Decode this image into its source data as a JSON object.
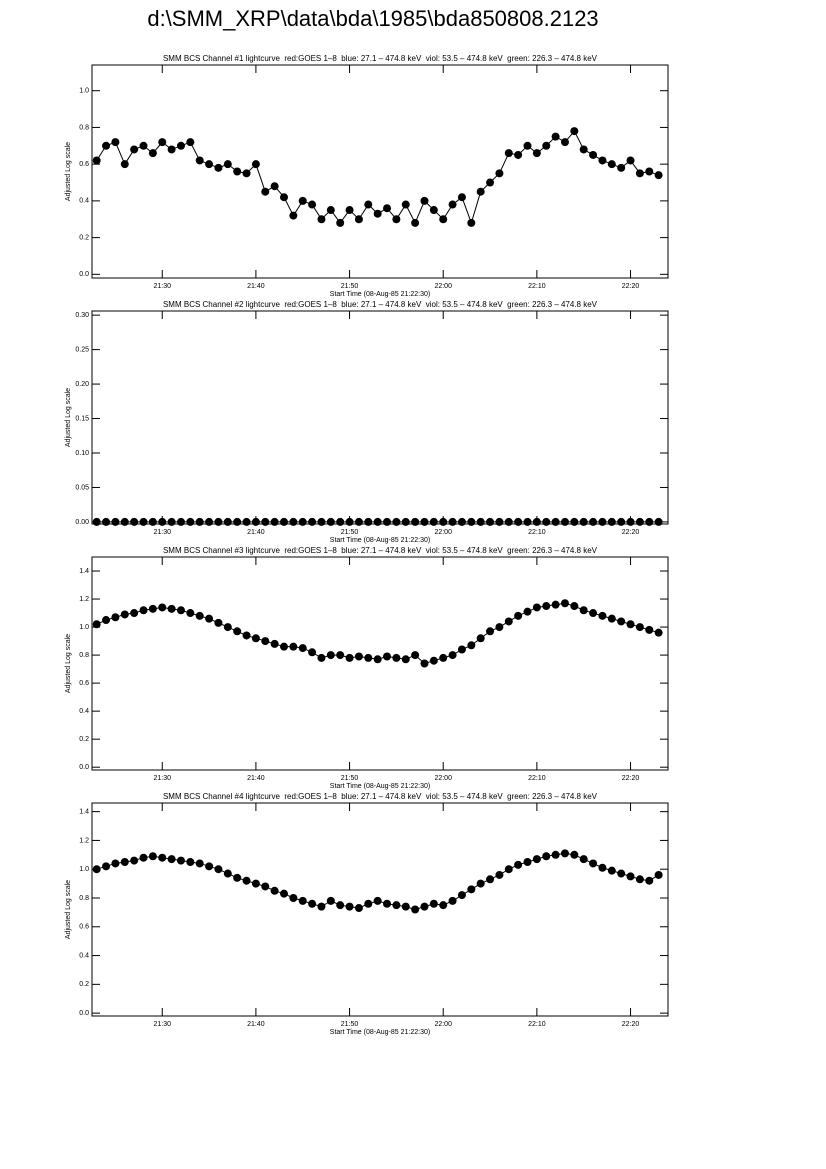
{
  "title": "d:\\SMM_XRP\\data\\bda\\1985\\bda850808.2123",
  "chart_data": [
    {
      "type": "line",
      "markers": true,
      "color": "#000000",
      "title": "SMM BCS Channel #1 lightcurve  red:GOES 1–8  blue: 27.1 – 474.8 keV  viol: 53.5 – 474.8 keV  green: 226.3 – 474.8 keV",
      "xlabel": "Start Time (08-Aug-85 21:22:30)",
      "ylabel": "Adjusted Log scale",
      "x": [
        "21:23",
        "21:24",
        "21:25",
        "21:26",
        "21:27",
        "21:28",
        "21:29",
        "21:30",
        "21:31",
        "21:32",
        "21:33",
        "21:34",
        "21:35",
        "21:36",
        "21:37",
        "21:38",
        "21:39",
        "21:40",
        "21:41",
        "21:42",
        "21:43",
        "21:44",
        "21:45",
        "21:46",
        "21:47",
        "21:48",
        "21:49",
        "21:50",
        "21:51",
        "21:52",
        "21:53",
        "21:54",
        "21:55",
        "21:56",
        "21:57",
        "21:58",
        "21:59",
        "22:00",
        "22:01",
        "22:02",
        "22:03",
        "22:04",
        "22:05",
        "22:06",
        "22:07",
        "22:08",
        "22:09",
        "22:10",
        "22:11",
        "22:12",
        "22:13",
        "22:14",
        "22:15",
        "22:16",
        "22:17",
        "22:18",
        "22:19",
        "22:20",
        "22:21",
        "22:22",
        "22:23"
      ],
      "values": [
        0.62,
        0.7,
        0.72,
        0.6,
        0.68,
        0.7,
        0.66,
        0.72,
        0.68,
        0.7,
        0.72,
        0.62,
        0.6,
        0.58,
        0.6,
        0.56,
        0.55,
        0.6,
        0.45,
        0.48,
        0.42,
        0.32,
        0.4,
        0.38,
        0.3,
        0.35,
        0.28,
        0.35,
        0.3,
        0.38,
        0.33,
        0.36,
        0.3,
        0.38,
        0.28,
        0.4,
        0.35,
        0.3,
        0.38,
        0.42,
        0.28,
        0.45,
        0.5,
        0.55,
        0.66,
        0.65,
        0.7,
        0.66,
        0.7,
        0.75,
        0.72,
        0.78,
        0.68,
        0.65,
        0.62,
        0.6,
        0.58,
        0.62,
        0.55,
        0.56,
        0.54
      ],
      "xlim": [
        "21:22:30",
        "22:24:00"
      ],
      "xticks": [
        "21:30",
        "21:40",
        "21:50",
        "22:00",
        "22:10",
        "22:20"
      ],
      "ylim": [
        -0.02,
        1.14
      ],
      "yticks": [
        {
          "value": 0,
          "label": "0.0"
        },
        {
          "value": 0.2,
          "label": "0.2"
        },
        {
          "value": 0.4,
          "label": "0.4"
        },
        {
          "value": 0.6,
          "label": "0.6"
        },
        {
          "value": 0.8,
          "label": "0.8"
        },
        {
          "value": 1,
          "label": "1.0"
        }
      ]
    },
    {
      "type": "line",
      "markers": true,
      "color": "#000000",
      "title": "SMM BCS Channel #2 lightcurve  red:GOES 1–8  blue: 27.1 – 474.8 keV  viol: 53.5 – 474.8 keV  green: 226.3 – 474.8 keV",
      "xlabel": "Start Time (08-Aug-85 21:22:30)",
      "ylabel": "Adjusted Log scale",
      "x": [
        "21:23",
        "21:24",
        "21:25",
        "21:26",
        "21:27",
        "21:28",
        "21:29",
        "21:30",
        "21:31",
        "21:32",
        "21:33",
        "21:34",
        "21:35",
        "21:36",
        "21:37",
        "21:38",
        "21:39",
        "21:40",
        "21:41",
        "21:42",
        "21:43",
        "21:44",
        "21:45",
        "21:46",
        "21:47",
        "21:48",
        "21:49",
        "21:50",
        "21:51",
        "21:52",
        "21:53",
        "21:54",
        "21:55",
        "21:56",
        "21:57",
        "21:58",
        "21:59",
        "22:00",
        "22:01",
        "22:02",
        "22:03",
        "22:04",
        "22:05",
        "22:06",
        "22:07",
        "22:08",
        "22:09",
        "22:10",
        "22:11",
        "22:12",
        "22:13",
        "22:14",
        "22:15",
        "22:16",
        "22:17",
        "22:18",
        "22:19",
        "22:20",
        "22:21",
        "22:22",
        "22:23"
      ],
      "values": [
        0,
        0,
        0,
        0,
        0,
        0,
        0,
        0,
        0,
        0,
        0,
        0,
        0,
        0,
        0,
        0,
        0,
        0,
        0,
        0,
        0,
        0,
        0,
        0,
        0,
        0,
        0,
        0,
        0,
        0,
        0,
        0,
        0,
        0,
        0,
        0,
        0,
        0,
        0,
        0,
        0,
        0,
        0,
        0,
        0,
        0,
        0,
        0,
        0,
        0,
        0,
        0,
        0,
        0,
        0,
        0,
        0,
        0,
        0,
        0,
        0
      ],
      "xlim": [
        "21:22:30",
        "22:24:00"
      ],
      "xticks": [
        "21:30",
        "21:40",
        "21:50",
        "22:00",
        "22:10",
        "22:20"
      ],
      "ylim": [
        -0.003,
        0.306
      ],
      "yticks": [
        {
          "value": 0,
          "label": "0.00"
        },
        {
          "value": 0.05,
          "label": "0.05"
        },
        {
          "value": 0.1,
          "label": "0.10"
        },
        {
          "value": 0.15,
          "label": "0.15"
        },
        {
          "value": 0.2,
          "label": "0.20"
        },
        {
          "value": 0.25,
          "label": "0.25"
        },
        {
          "value": 0.3,
          "label": "0.30"
        }
      ]
    },
    {
      "type": "line",
      "markers": true,
      "color": "#000000",
      "title": "SMM BCS Channel #3 lightcurve  red:GOES 1–8  blue: 27.1 – 474.8 keV  viol: 53.5 – 474.8 keV  green: 226.3 – 474.8 keV",
      "xlabel": "Start Time (08-Aug-85 21:22:30)",
      "ylabel": "Adjusted Log scale",
      "x": [
        "21:23",
        "21:24",
        "21:25",
        "21:26",
        "21:27",
        "21:28",
        "21:29",
        "21:30",
        "21:31",
        "21:32",
        "21:33",
        "21:34",
        "21:35",
        "21:36",
        "21:37",
        "21:38",
        "21:39",
        "21:40",
        "21:41",
        "21:42",
        "21:43",
        "21:44",
        "21:45",
        "21:46",
        "21:47",
        "21:48",
        "21:49",
        "21:50",
        "21:51",
        "21:52",
        "21:53",
        "21:54",
        "21:55",
        "21:56",
        "21:57",
        "21:58",
        "21:59",
        "22:00",
        "22:01",
        "22:02",
        "22:03",
        "22:04",
        "22:05",
        "22:06",
        "22:07",
        "22:08",
        "22:09",
        "22:10",
        "22:11",
        "22:12",
        "22:13",
        "22:14",
        "22:15",
        "22:16",
        "22:17",
        "22:18",
        "22:19",
        "22:20",
        "22:21",
        "22:22",
        "22:23"
      ],
      "values": [
        1.02,
        1.05,
        1.07,
        1.09,
        1.1,
        1.12,
        1.13,
        1.14,
        1.13,
        1.12,
        1.1,
        1.08,
        1.06,
        1.03,
        1.0,
        0.97,
        0.94,
        0.92,
        0.9,
        0.88,
        0.86,
        0.86,
        0.85,
        0.82,
        0.78,
        0.8,
        0.8,
        0.78,
        0.79,
        0.78,
        0.77,
        0.79,
        0.78,
        0.77,
        0.8,
        0.74,
        0.76,
        0.78,
        0.8,
        0.84,
        0.87,
        0.92,
        0.97,
        1.0,
        1.04,
        1.08,
        1.11,
        1.14,
        1.15,
        1.16,
        1.17,
        1.15,
        1.12,
        1.1,
        1.08,
        1.06,
        1.04,
        1.02,
        1.0,
        0.98,
        0.96
      ],
      "xlim": [
        "21:22:30",
        "22:24:00"
      ],
      "xticks": [
        "21:30",
        "21:40",
        "21:50",
        "22:00",
        "22:10",
        "22:20"
      ],
      "ylim": [
        -0.02,
        1.5
      ],
      "yticks": [
        {
          "value": 0,
          "label": "0.0"
        },
        {
          "value": 0.2,
          "label": "0.2"
        },
        {
          "value": 0.4,
          "label": "0.4"
        },
        {
          "value": 0.6,
          "label": "0.6"
        },
        {
          "value": 0.8,
          "label": "0.8"
        },
        {
          "value": 1,
          "label": "1.0"
        },
        {
          "value": 1.2,
          "label": "1.2"
        },
        {
          "value": 1.4,
          "label": "1.4"
        }
      ]
    },
    {
      "type": "line",
      "markers": true,
      "color": "#000000",
      "title": "SMM BCS Channel #4 lightcurve  red:GOES 1–8  blue: 27.1 – 474.8 keV  viol: 53.5 – 474.8 keV  green: 226.3 – 474.8 keV",
      "xlabel": "Start Time (08-Aug-85 21:22:30)",
      "ylabel": "Adjusted Log scale",
      "x": [
        "21:23",
        "21:24",
        "21:25",
        "21:26",
        "21:27",
        "21:28",
        "21:29",
        "21:30",
        "21:31",
        "21:32",
        "21:33",
        "21:34",
        "21:35",
        "21:36",
        "21:37",
        "21:38",
        "21:39",
        "21:40",
        "21:41",
        "21:42",
        "21:43",
        "21:44",
        "21:45",
        "21:46",
        "21:47",
        "21:48",
        "21:49",
        "21:50",
        "21:51",
        "21:52",
        "21:53",
        "21:54",
        "21:55",
        "21:56",
        "21:57",
        "21:58",
        "21:59",
        "22:00",
        "22:01",
        "22:02",
        "22:03",
        "22:04",
        "22:05",
        "22:06",
        "22:07",
        "22:08",
        "22:09",
        "22:10",
        "22:11",
        "22:12",
        "22:13",
        "22:14",
        "22:15",
        "22:16",
        "22:17",
        "22:18",
        "22:19",
        "22:20",
        "22:21",
        "22:22",
        "22:23"
      ],
      "values": [
        1.0,
        1.02,
        1.04,
        1.05,
        1.06,
        1.08,
        1.09,
        1.08,
        1.07,
        1.06,
        1.05,
        1.04,
        1.02,
        1.0,
        0.97,
        0.94,
        0.92,
        0.9,
        0.88,
        0.85,
        0.83,
        0.8,
        0.78,
        0.76,
        0.74,
        0.78,
        0.75,
        0.74,
        0.73,
        0.76,
        0.78,
        0.76,
        0.75,
        0.74,
        0.72,
        0.74,
        0.76,
        0.75,
        0.78,
        0.82,
        0.86,
        0.9,
        0.93,
        0.96,
        1.0,
        1.03,
        1.05,
        1.07,
        1.09,
        1.1,
        1.11,
        1.1,
        1.07,
        1.04,
        1.01,
        0.99,
        0.97,
        0.95,
        0.93,
        0.92,
        0.96
      ],
      "xlim": [
        "21:22:30",
        "22:24:00"
      ],
      "xticks": [
        "21:30",
        "21:40",
        "21:50",
        "22:00",
        "22:10",
        "22:20"
      ],
      "ylim": [
        -0.02,
        1.46
      ],
      "yticks": [
        {
          "value": 0,
          "label": "0.0"
        },
        {
          "value": 0.2,
          "label": "0.2"
        },
        {
          "value": 0.4,
          "label": "0.4"
        },
        {
          "value": 0.6,
          "label": "0.6"
        },
        {
          "value": 0.8,
          "label": "0.8"
        },
        {
          "value": 1,
          "label": "1.0"
        },
        {
          "value": 1.2,
          "label": "1.2"
        },
        {
          "value": 1.4,
          "label": "1.4"
        }
      ]
    }
  ]
}
